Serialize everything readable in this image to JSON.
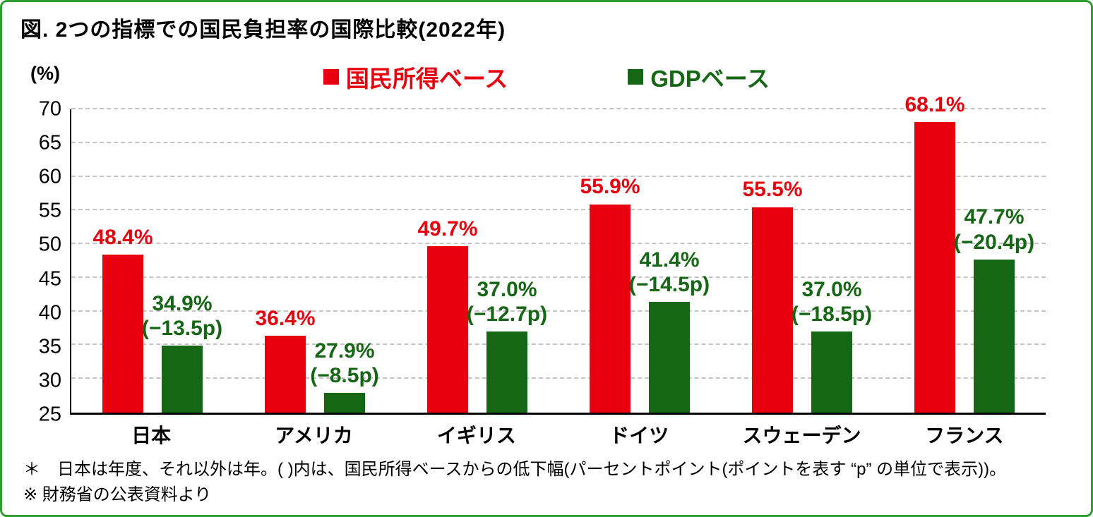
{
  "title": "図. 2つの指標での国民負担率の国際比較(2022年)",
  "y_axis_unit": "(%)",
  "legend": [
    {
      "label": "国民所得ベース",
      "color": "#e8000f"
    },
    {
      "label": "GDPベース",
      "color": "#156615"
    }
  ],
  "footnotes": [
    "＊　日本は年度、それ以外は年。( )内は、国民所得ベースからの低下幅(パーセントポイント(ポイントを表す “p” の単位で表示))。",
    "※ 財務省の公表資料より"
  ],
  "colors": {
    "series_income": "#e8000f",
    "series_gdp": "#156615",
    "frame_border": "#2f9e2f",
    "gridline": "#c4c4c4"
  },
  "chart_data": {
    "type": "bar",
    "title": "2つの指標での国民負担率の国際比較(2022年)",
    "ylabel": "(%)",
    "ylim": [
      25,
      70
    ],
    "ytick_step": 5,
    "grid": "dashed-horizontal",
    "legend_position": "top",
    "categories": [
      "日本",
      "アメリカ",
      "イギリス",
      "ドイツ",
      "スウェーデン",
      "フランス"
    ],
    "series": [
      {
        "name": "国民所得ベース",
        "color": "#e8000f",
        "values": [
          48.4,
          36.4,
          49.7,
          55.9,
          55.5,
          68.1
        ],
        "labels": [
          "48.4%",
          "36.4%",
          "49.7%",
          "55.9%",
          "55.5%",
          "68.1%"
        ]
      },
      {
        "name": "GDPベース",
        "color": "#156615",
        "values": [
          34.9,
          27.9,
          37.0,
          41.4,
          37.0,
          47.7
        ],
        "labels": [
          "34.9%",
          "27.9%",
          "37.0%",
          "41.4%",
          "37.0%",
          "47.7%"
        ],
        "sub_labels": [
          "(−13.5p)",
          "(−8.5p)",
          "(−12.7p)",
          "(−14.5p)",
          "(−18.5p)",
          "(−20.4p)"
        ]
      }
    ]
  }
}
